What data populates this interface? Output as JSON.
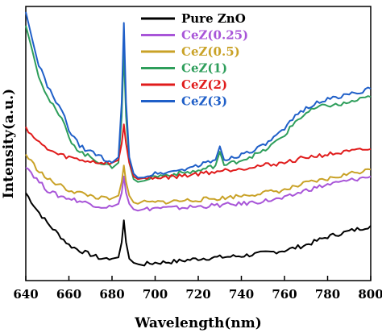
{
  "chart_data": {
    "type": "line",
    "xlabel": "Wavelength(nm)",
    "ylabel": "Intensity(a.u.)",
    "xlim": [
      640,
      800
    ],
    "ylim": [
      0,
      100
    ],
    "y_ticks_labeled": false,
    "x_ticks": [
      640,
      660,
      680,
      700,
      720,
      740,
      760,
      780,
      800
    ],
    "legend_position": "top-right",
    "series": [
      {
        "name": "Pure ZnO",
        "color": "#000000",
        "x": [
          640,
          645,
          650,
          655,
          660,
          665,
          670,
          675,
          680,
          683,
          684.5,
          685.5,
          686.5,
          688,
          690,
          692,
          695,
          700,
          710,
          720,
          730,
          740,
          750,
          760,
          770,
          780,
          790,
          800
        ],
        "y": [
          32,
          26,
          21,
          17,
          13,
          11,
          9.5,
          8,
          8,
          8.5,
          14,
          22,
          14,
          8,
          6.5,
          6,
          6,
          6.5,
          7,
          8,
          8.5,
          9,
          10,
          11,
          13,
          16,
          18,
          20
        ]
      },
      {
        "name": "CeZ(0.25)",
        "color": "#a855d8",
        "x": [
          640,
          645,
          650,
          655,
          660,
          665,
          670,
          675,
          680,
          683,
          684.5,
          685.5,
          686.5,
          688,
          690,
          692,
          695,
          700,
          710,
          720,
          730,
          740,
          750,
          760,
          770,
          780,
          790,
          800
        ],
        "y": [
          42,
          37,
          33,
          31,
          30,
          29,
          28,
          27,
          27,
          28,
          32,
          38,
          32,
          28,
          26,
          25.5,
          26,
          26.5,
          26.5,
          27,
          27.5,
          28,
          29,
          30,
          33,
          35,
          36.5,
          38
        ]
      },
      {
        "name": "CeZ(0.5)",
        "color": "#c9a227",
        "x": [
          640,
          645,
          650,
          655,
          660,
          665,
          670,
          675,
          680,
          683,
          684.5,
          685.5,
          686.5,
          688,
          690,
          692,
          695,
          700,
          710,
          720,
          730,
          740,
          750,
          760,
          770,
          780,
          790,
          800
        ],
        "y": [
          46,
          41,
          37,
          35,
          33,
          32,
          31,
          30,
          30,
          31,
          36,
          42,
          36,
          31,
          28.5,
          28,
          28.5,
          28.5,
          29,
          29.5,
          30,
          31,
          32,
          33,
          35.5,
          37,
          39,
          40.5
        ]
      },
      {
        "name": "CeZ(1)",
        "color": "#2e9e5b",
        "x": [
          640,
          643,
          646,
          650,
          654,
          658,
          660,
          665,
          670,
          675,
          680,
          683,
          684.5,
          685.5,
          686.5,
          688,
          690,
          692,
          695,
          700,
          710,
          720,
          728,
          730,
          732,
          740,
          750,
          760,
          765,
          770,
          775,
          780,
          785,
          790,
          795,
          800
        ],
        "y": [
          93,
          84,
          75,
          67,
          62,
          57,
          52,
          47,
          45,
          43,
          41,
          43,
          60,
          84,
          60,
          43,
          37,
          36,
          37,
          38,
          39,
          40,
          42,
          47,
          42,
          44,
          47,
          53,
          58,
          61,
          63,
          64,
          64,
          65,
          66,
          67
        ]
      },
      {
        "name": "CeZ(2)",
        "color": "#e01b1b",
        "x": [
          640,
          645,
          650,
          655,
          660,
          665,
          670,
          675,
          680,
          683,
          684.5,
          685.5,
          686.5,
          688,
          690,
          692,
          695,
          700,
          710,
          720,
          730,
          740,
          750,
          760,
          770,
          780,
          790,
          800
        ],
        "y": [
          56,
          51,
          48,
          46,
          45,
          44,
          43.5,
          43,
          43,
          44,
          50,
          57,
          50,
          43,
          38,
          37,
          37,
          37.5,
          38,
          39,
          40,
          41,
          42,
          43,
          45,
          46,
          47,
          48
        ]
      },
      {
        "name": "CeZ(3)",
        "color": "#1f5fc8",
        "x": [
          640,
          643,
          646,
          650,
          654,
          658,
          660,
          665,
          670,
          675,
          680,
          683,
          684.5,
          685.5,
          686.5,
          688,
          690,
          692,
          695,
          700,
          710,
          720,
          728,
          730,
          732,
          740,
          750,
          760,
          765,
          770,
          775,
          780,
          785,
          790,
          795,
          800
        ],
        "y": [
          98,
          88,
          79,
          71,
          65,
          60,
          55,
          49,
          47,
          45,
          43,
          45,
          65,
          94,
          65,
          45,
          39,
          37.5,
          38,
          39,
          40,
          42,
          44,
          49,
          44,
          46,
          49,
          55,
          60,
          63,
          65,
          66,
          67,
          68,
          69,
          70
        ]
      }
    ]
  }
}
